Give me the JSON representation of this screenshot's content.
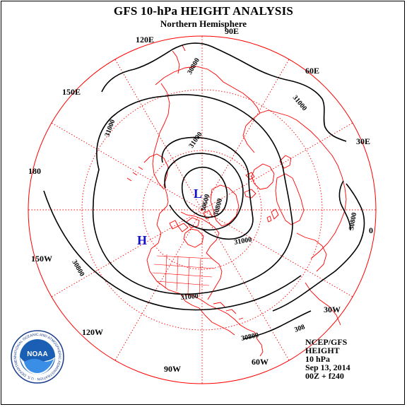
{
  "header": {
    "title": "GFS 10-hPa HEIGHT ANALYSIS",
    "subtitle": "Northern Hemisphere"
  },
  "map": {
    "projection": "polar stereographic, North Pole centered",
    "longitude_labels": [
      "90E",
      "120E",
      "60E",
      "150E",
      "30E",
      "180",
      "0",
      "150W",
      "30W",
      "120W",
      "60W",
      "90W"
    ],
    "contour_labels": [
      "30800",
      "31000",
      "31000",
      "31000",
      "30600",
      "30800",
      "31000",
      "30800",
      "30800",
      "31000",
      "30800",
      "308"
    ],
    "pressure_centers": [
      {
        "label": "L",
        "meaning": "low"
      },
      {
        "label": "H",
        "meaning": "high"
      }
    ],
    "colors": {
      "contour": "#000000",
      "coastline": "#ff0000",
      "grid": "#ff0000",
      "center_label": "#1010c8"
    }
  },
  "info": {
    "source": "NCEP/GFS",
    "field": "HEIGHT",
    "level": "10 hPa",
    "date": "Sep 13, 2014",
    "cycle": "00Z + f240"
  },
  "logo": {
    "text": "NOAA",
    "ring_text": "NATIONAL OCEANIC AND ATMOSPHERIC ADMINISTRATION · U.S. DEPARTMENT OF COMMERCE"
  }
}
